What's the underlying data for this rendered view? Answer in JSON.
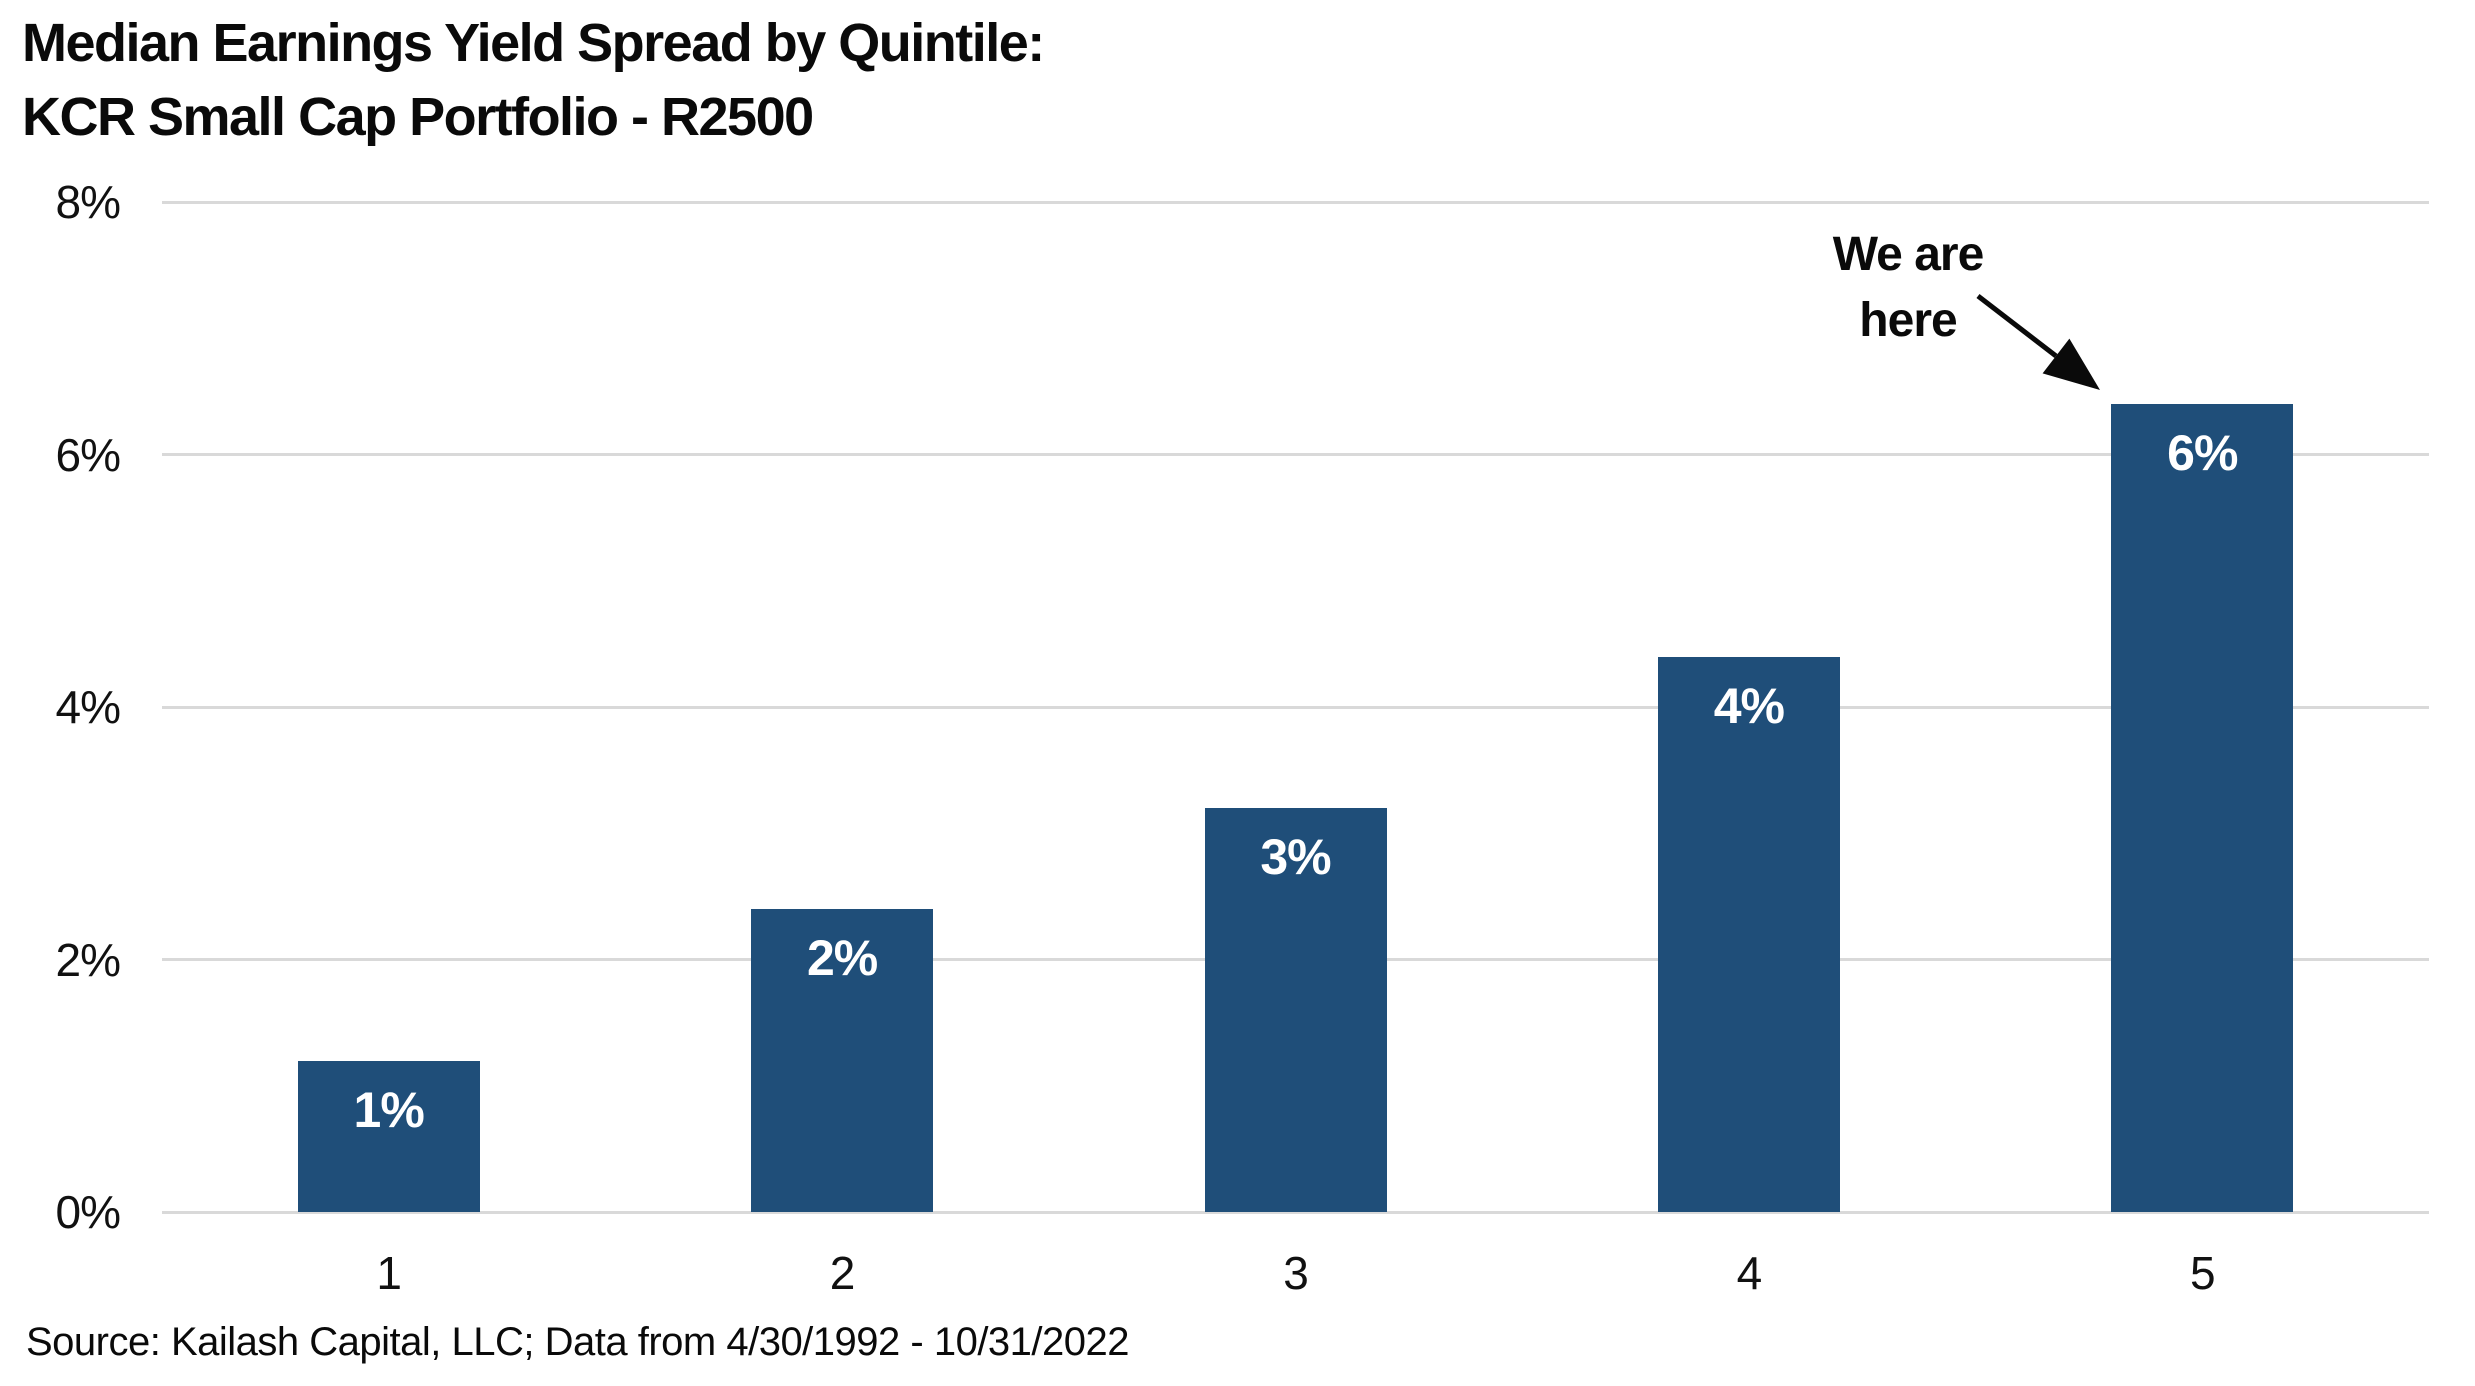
{
  "title": {
    "line1": "Median Earnings Yield Spread by Quintile:",
    "line2": "KCR Small Cap Portfolio - R2500"
  },
  "annotation": {
    "line1": "We are",
    "line2": "here"
  },
  "source": "Source: Kailash Capital, LLC; Data from 4/30/1992 - 10/31/2022",
  "chart_data": {
    "type": "bar",
    "title": "Median Earnings Yield Spread by Quintile: KCR Small Cap Portfolio - R2500",
    "categories": [
      "1",
      "2",
      "3",
      "4",
      "5"
    ],
    "values": [
      1.2,
      2.4,
      3.2,
      4.4,
      6.4
    ],
    "bar_labels": [
      "1%",
      "2%",
      "3%",
      "4%",
      "6%"
    ],
    "xlabel": "",
    "ylabel": "",
    "ylim": [
      0,
      8
    ],
    "y_tick_values": [
      0,
      2,
      4,
      6,
      8
    ],
    "y_tick_labels": [
      "0%",
      "2%",
      "4%",
      "6%",
      "8%"
    ],
    "grid": "horizontal",
    "legend": "none",
    "annotation": {
      "text": "We are here",
      "target_category": "5"
    },
    "colors": {
      "bar": "#1F4E79",
      "gridline": "#D9D9D9",
      "bar_label_text": "#FFFFFF",
      "axis_text": "#111111",
      "title_text": "#0A0A0A",
      "annotation_text": "#0A0A0A",
      "background": "#FFFFFF"
    }
  }
}
